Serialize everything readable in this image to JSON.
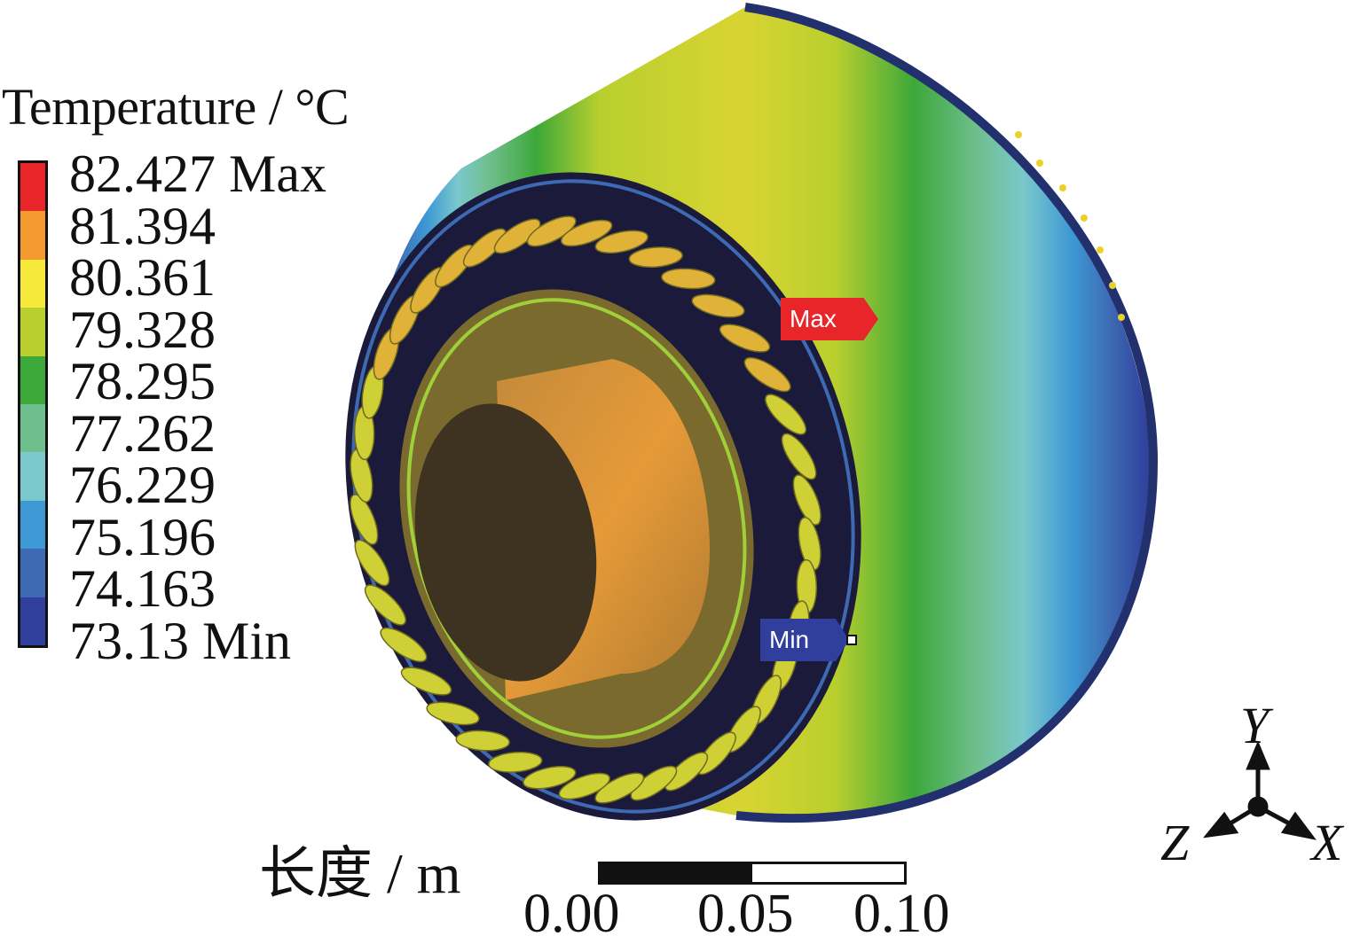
{
  "legend": {
    "title": "Temperature / °C",
    "levels": [
      {
        "label": "82.427 Max",
        "color": "#e8262a"
      },
      {
        "label": "81.394",
        "color": "#f39a2e"
      },
      {
        "label": "80.361",
        "color": "#f7e93a"
      },
      {
        "label": "79.328",
        "color": "#b9cf2e"
      },
      {
        "label": "78.295",
        "color": "#3da83a"
      },
      {
        "label": "77.262",
        "color": "#6fbe8d"
      },
      {
        "label": "76.229",
        "color": "#7ac8cc"
      },
      {
        "label": "75.196",
        "color": "#3e98d4"
      },
      {
        "label": "74.163",
        "color": "#3d6ab3"
      },
      {
        "label": "73.13 Min",
        "color": "#2f3f9b"
      }
    ]
  },
  "probes": {
    "max_label": "Max",
    "min_label": "Min"
  },
  "scale": {
    "label": "长度 / m",
    "ticks": [
      "0.00",
      "0.05",
      "0.10"
    ]
  },
  "axes": {
    "y": "Y",
    "z": "Z",
    "x": "X"
  }
}
